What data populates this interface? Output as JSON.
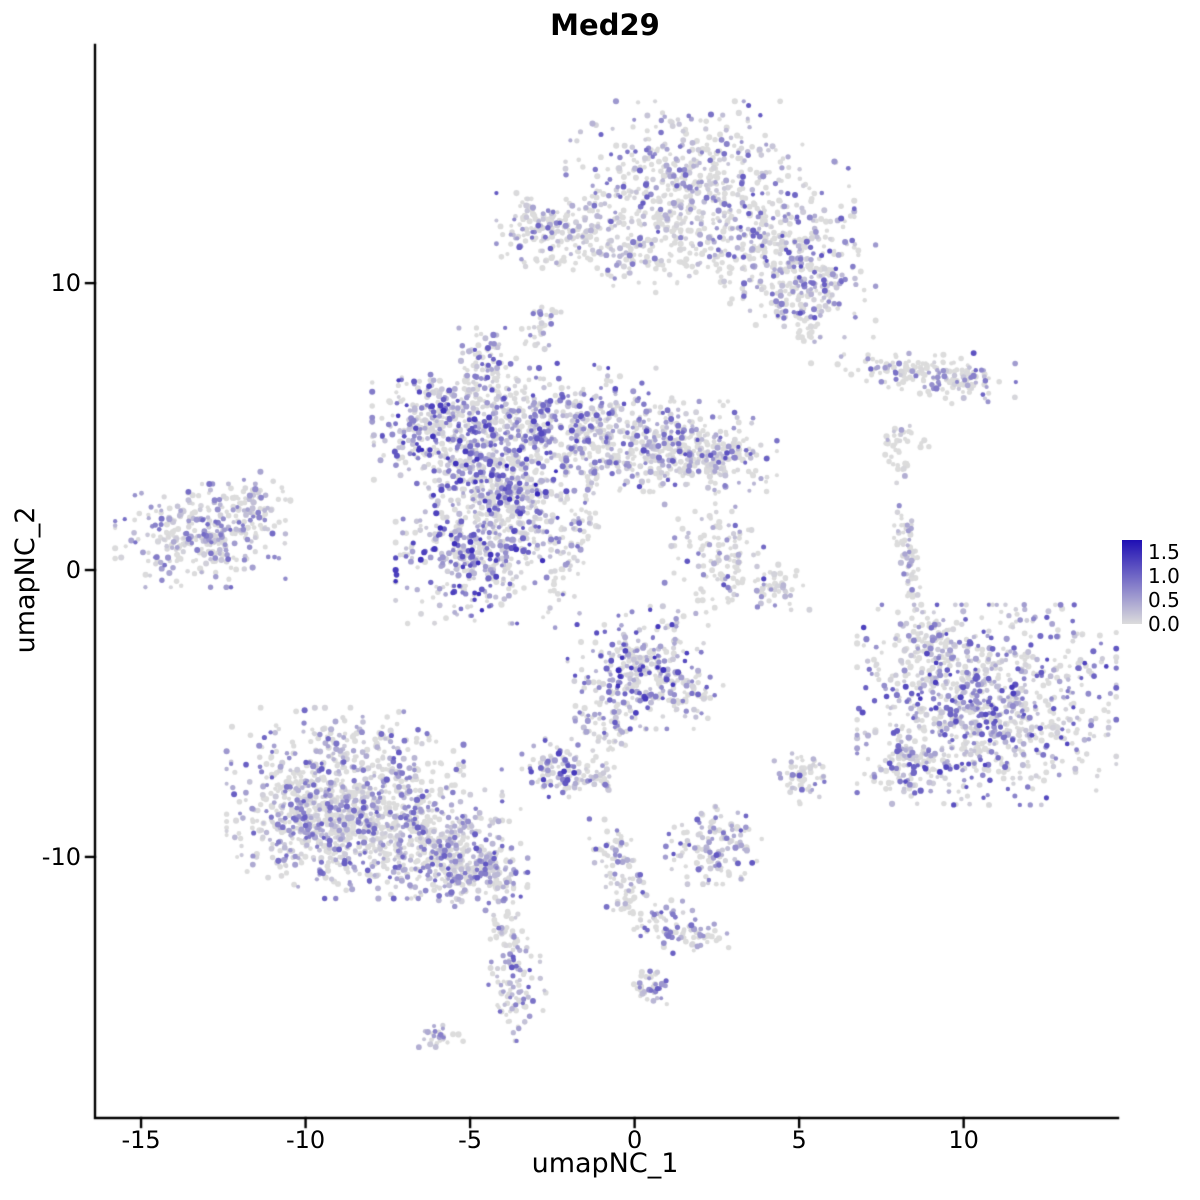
{
  "chart_data": {
    "type": "scatter",
    "title": "Med29",
    "xlabel": "umapNC_1",
    "ylabel": "umapNC_2",
    "xlim": [
      -16.4,
      14.6
    ],
    "ylim": [
      -19.1,
      18.3
    ],
    "grid": false,
    "x_ticks": [
      {
        "value": -15,
        "label": "-15"
      },
      {
        "value": -10,
        "label": "-10"
      },
      {
        "value": -5,
        "label": "-5"
      },
      {
        "value": 0,
        "label": "0"
      },
      {
        "value": 5,
        "label": "5"
      },
      {
        "value": 10,
        "label": "10"
      }
    ],
    "y_ticks": [
      {
        "value": 10,
        "label": "10"
      },
      {
        "value": 0,
        "label": "0"
      },
      {
        "value": -10,
        "label": "-10"
      }
    ],
    "legend": {
      "position": "right",
      "min": 0,
      "max": 1.75,
      "low_color": "#DCDCDC",
      "high_color": "#1F0FB4",
      "ticks": [
        {
          "value": 1.5,
          "label": "1.5"
        },
        {
          "value": 1.0,
          "label": "1.0"
        },
        {
          "value": 0.5,
          "label": "0.5"
        },
        {
          "value": 0.0,
          "label": "0.0"
        }
      ]
    },
    "point_radius": 2.0,
    "seed": 42,
    "clusters": [
      {
        "cx": 1.5,
        "cy": 14.2,
        "sx": 1.6,
        "sy": 0.95,
        "n": 260,
        "p0": 0.45,
        "emax": 1.1
      },
      {
        "cx": 2.4,
        "cy": 12.6,
        "sx": 1.9,
        "sy": 1.0,
        "n": 300,
        "p0": 0.5,
        "emax": 1.1
      },
      {
        "cx": 4.1,
        "cy": 11.1,
        "sx": 1.2,
        "sy": 0.9,
        "n": 220,
        "p0": 0.45,
        "emax": 1.2
      },
      {
        "cx": 5.3,
        "cy": 9.8,
        "sx": 0.9,
        "sy": 0.75,
        "n": 190,
        "p0": 0.4,
        "emax": 1.2
      },
      {
        "cx": -1.5,
        "cy": 11.9,
        "sx": 1.2,
        "sy": 0.55,
        "n": 170,
        "p0": 0.45,
        "emax": 1.1
      },
      {
        "cx": -2.95,
        "cy": 11.7,
        "sx": 0.5,
        "sy": 0.55,
        "n": 80,
        "p0": 0.4,
        "emax": 1.1
      },
      {
        "cx": 0.4,
        "cy": 10.8,
        "sx": 1.3,
        "sy": 0.5,
        "n": 90,
        "p0": 0.6,
        "emax": 0.9
      },
      {
        "cx": -2.8,
        "cy": 8.6,
        "sx": 0.28,
        "sy": 0.4,
        "n": 35,
        "p0": 0.5,
        "emax": 0.9
      },
      {
        "cx": 8.5,
        "cy": 6.9,
        "sx": 1.4,
        "sy": 0.32,
        "n": 130,
        "p0": 0.5,
        "emax": 1.0,
        "rot": -8
      },
      {
        "cx": 9.9,
        "cy": 6.7,
        "sx": 0.5,
        "sy": 0.4,
        "n": 50,
        "p0": 0.45,
        "emax": 1.2
      },
      {
        "cx": 8.1,
        "cy": 4.6,
        "sx": 0.45,
        "sy": 0.35,
        "n": 30,
        "p0": 0.7,
        "emax": 0.6
      },
      {
        "cx": 8.0,
        "cy": 3.6,
        "sx": 0.2,
        "sy": 0.25,
        "n": 12,
        "p0": 0.7,
        "emax": 0.5
      },
      {
        "cx": -4.6,
        "cy": 5.3,
        "sx": 1.5,
        "sy": 0.85,
        "n": 360,
        "p0": 0.35,
        "emax": 1.3
      },
      {
        "cx": -1.6,
        "cy": 4.9,
        "sx": 1.3,
        "sy": 0.95,
        "n": 360,
        "p0": 0.3,
        "emax": 1.3
      },
      {
        "cx": 0.9,
        "cy": 4.3,
        "sx": 1.2,
        "sy": 0.7,
        "n": 280,
        "p0": 0.4,
        "emax": 1.2
      },
      {
        "cx": 2.3,
        "cy": 3.9,
        "sx": 0.9,
        "sy": 0.55,
        "n": 170,
        "p0": 0.5,
        "emax": 1.2
      },
      {
        "cx": -4.3,
        "cy": 3.3,
        "sx": 1.0,
        "sy": 0.8,
        "n": 260,
        "p0": 0.3,
        "emax": 1.6
      },
      {
        "cx": -5.9,
        "cy": 4.7,
        "sx": 0.9,
        "sy": 0.85,
        "n": 210,
        "p0": 0.35,
        "emax": 1.5
      },
      {
        "cx": -4.9,
        "cy": 0.5,
        "sx": 1.05,
        "sy": 1.05,
        "n": 380,
        "p0": 0.3,
        "emax": 1.5
      },
      {
        "cx": -3.5,
        "cy": 2.1,
        "sx": 0.8,
        "sy": 0.85,
        "n": 200,
        "p0": 0.35,
        "emax": 1.3
      },
      {
        "cx": -4.5,
        "cy": 7.2,
        "sx": 0.4,
        "sy": 0.55,
        "n": 70,
        "p0": 0.35,
        "emax": 1.1
      },
      {
        "cx": -1.9,
        "cy": 0.9,
        "sx": 0.28,
        "sy": 1.3,
        "n": 80,
        "p0": 0.45,
        "emax": 1.0,
        "rot": -18
      },
      {
        "cx": -13.2,
        "cy": 1.2,
        "sx": 1.15,
        "sy": 0.8,
        "n": 320,
        "p0": 0.35,
        "emax": 1.0
      },
      {
        "cx": -11.7,
        "cy": 2.3,
        "sx": 0.55,
        "sy": 0.5,
        "n": 70,
        "p0": 0.45,
        "emax": 0.9
      },
      {
        "cx": 2.6,
        "cy": 0.4,
        "sx": 0.75,
        "sy": 0.85,
        "n": 130,
        "p0": 0.55,
        "emax": 1.3
      },
      {
        "cx": 4.3,
        "cy": -0.6,
        "sx": 0.45,
        "sy": 0.35,
        "n": 45,
        "p0": 0.5,
        "emax": 1.0
      },
      {
        "cx": 8.35,
        "cy": 0.3,
        "sx": 0.16,
        "sy": 1.0,
        "n": 70,
        "p0": 0.5,
        "emax": 1.0,
        "rot": 8
      },
      {
        "cx": 10.7,
        "cy": -4.7,
        "sx": 1.75,
        "sy": 1.55,
        "n": 950,
        "p0": 0.3,
        "emax": 1.4
      },
      {
        "cx": 8.4,
        "cy": -6.8,
        "sx": 0.55,
        "sy": 0.6,
        "n": 110,
        "p0": 0.35,
        "emax": 1.3
      },
      {
        "cx": 9.0,
        "cy": -2.6,
        "sx": 0.5,
        "sy": 0.5,
        "n": 80,
        "p0": 0.55,
        "emax": 0.9
      },
      {
        "cx": 0.1,
        "cy": -3.4,
        "sx": 0.95,
        "sy": 0.95,
        "n": 280,
        "p0": 0.3,
        "emax": 1.5
      },
      {
        "cx": -0.8,
        "cy": -5.3,
        "sx": 0.45,
        "sy": 0.7,
        "n": 70,
        "p0": 0.4,
        "emax": 1.1
      },
      {
        "cx": 1.6,
        "cy": -4.3,
        "sx": 0.5,
        "sy": 0.4,
        "n": 60,
        "p0": 0.5,
        "emax": 1.0
      },
      {
        "cx": -2.3,
        "cy": -6.9,
        "sx": 0.5,
        "sy": 0.45,
        "n": 100,
        "p0": 0.3,
        "emax": 1.4
      },
      {
        "cx": -1.0,
        "cy": -7.3,
        "sx": 0.25,
        "sy": 0.25,
        "n": 25,
        "p0": 0.4,
        "emax": 1.0
      },
      {
        "cx": -8.8,
        "cy": -7.5,
        "sx": 1.6,
        "sy": 1.2,
        "n": 560,
        "p0": 0.4,
        "emax": 1.1
      },
      {
        "cx": -7.4,
        "cy": -9.2,
        "sx": 1.5,
        "sy": 1.0,
        "n": 460,
        "p0": 0.4,
        "emax": 1.1
      },
      {
        "cx": -9.9,
        "cy": -8.9,
        "sx": 1.0,
        "sy": 0.95,
        "n": 260,
        "p0": 0.4,
        "emax": 1.0
      },
      {
        "cx": -5.6,
        "cy": -9.9,
        "sx": 0.95,
        "sy": 0.7,
        "n": 210,
        "p0": 0.35,
        "emax": 1.2
      },
      {
        "cx": -4.6,
        "cy": -10.6,
        "sx": 0.6,
        "sy": 0.5,
        "n": 120,
        "p0": 0.35,
        "emax": 1.2
      },
      {
        "cx": -3.9,
        "cy": -12.2,
        "sx": 0.3,
        "sy": 0.65,
        "n": 50,
        "p0": 0.5,
        "emax": 1.0
      },
      {
        "cx": -3.6,
        "cy": -14.5,
        "sx": 0.4,
        "sy": 0.85,
        "n": 100,
        "p0": 0.35,
        "emax": 1.2
      },
      {
        "cx": -6.0,
        "cy": -16.2,
        "sx": 0.35,
        "sy": 0.22,
        "n": 25,
        "p0": 0.5,
        "emax": 0.8
      },
      {
        "cx": 2.4,
        "cy": -9.6,
        "sx": 0.65,
        "sy": 0.6,
        "n": 140,
        "p0": 0.3,
        "emax": 1.2
      },
      {
        "cx": -0.7,
        "cy": -9.8,
        "sx": 0.3,
        "sy": 0.5,
        "n": 50,
        "p0": 0.4,
        "emax": 1.1
      },
      {
        "cx": -0.2,
        "cy": -11.2,
        "sx": 0.3,
        "sy": 0.5,
        "n": 45,
        "p0": 0.4,
        "emax": 1.1
      },
      {
        "cx": 0.8,
        "cy": -12.3,
        "sx": 0.45,
        "sy": 0.35,
        "n": 45,
        "p0": 0.4,
        "emax": 1.1
      },
      {
        "cx": 1.9,
        "cy": -12.8,
        "sx": 0.45,
        "sy": 0.3,
        "n": 45,
        "p0": 0.4,
        "emax": 1.1
      },
      {
        "cx": 0.5,
        "cy": -14.5,
        "sx": 0.3,
        "sy": 0.28,
        "n": 40,
        "p0": 0.35,
        "emax": 1.1
      },
      {
        "cx": 5.1,
        "cy": -7.2,
        "sx": 0.38,
        "sy": 0.42,
        "n": 60,
        "p0": 0.4,
        "emax": 1.1
      },
      {
        "cx": 5.2,
        "cy": 8.3,
        "sx": 0.18,
        "sy": 0.15,
        "n": 8,
        "p0": 0.8,
        "emax": 0.5
      }
    ]
  }
}
